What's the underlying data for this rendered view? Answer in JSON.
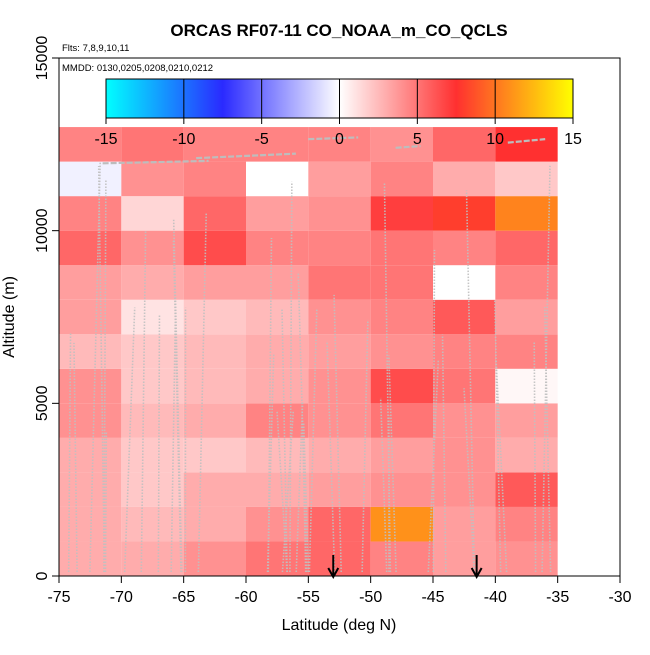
{
  "chart_data": {
    "type": "heatmap",
    "title": "ORCAS RF07-11 CO_NOAA_m_CO_QCLS",
    "annotations": {
      "flights": "Flts: 7,8,9,10,11",
      "dates": "MMDD: 0130,0205,0208,0210,0212"
    },
    "xlabel": "Latitude (deg N)",
    "ylabel": "Altitude (m)",
    "xlim": [
      -75,
      -30
    ],
    "ylim": [
      0,
      15000
    ],
    "xticks": [
      -75,
      -70,
      -65,
      -60,
      -55,
      -50,
      -45,
      -40,
      -35,
      -30
    ],
    "xtick_labels": [
      "-75",
      "-70",
      "-65",
      "-60",
      "-55",
      "-50",
      "-45",
      "-40",
      "-35",
      "-30"
    ],
    "yticks": [
      0,
      5000,
      10000,
      15000
    ],
    "ytick_labels": [
      "0",
      "5000",
      "10000",
      "15000"
    ],
    "colorbar": {
      "range": [
        -15,
        15
      ],
      "ticks": [
        -15,
        -10,
        -5,
        0,
        5,
        10,
        15
      ],
      "tick_labels": [
        "-15",
        "-10",
        "-5",
        "0",
        "5",
        "10",
        "15"
      ],
      "color_stops": [
        "#00ffff",
        "#2a2aff",
        "#ffffff",
        "#ff3030",
        "#ffff00"
      ]
    },
    "lat_bins": [
      -75,
      -70,
      -65,
      -60,
      -55,
      -50,
      -45,
      -40,
      -35
    ],
    "alt_bins": [
      0,
      1000,
      2000,
      3000,
      4000,
      5000,
      6000,
      7000,
      8000,
      9000,
      10000,
      11000,
      12000
    ],
    "values_by_alt_row_bottom_to_top": [
      [
        3.0,
        3.0,
        4.0,
        5.0,
        5.5,
        4.5,
        3.5,
        4.0
      ],
      [
        3.0,
        2.5,
        3.0,
        4.0,
        5.5,
        11.0,
        3.5,
        4.5
      ],
      [
        3.0,
        2.0,
        3.0,
        3.0,
        3.5,
        4.0,
        4.0,
        6.0
      ],
      [
        3.0,
        2.0,
        2.0,
        2.5,
        3.0,
        3.5,
        4.0,
        3.0
      ],
      [
        4.0,
        2.5,
        3.0,
        4.5,
        4.0,
        5.0,
        4.0,
        3.5
      ],
      [
        4.0,
        2.0,
        2.5,
        3.0,
        4.0,
        6.5,
        5.0,
        0.3
      ],
      [
        2.5,
        2.0,
        2.5,
        3.0,
        3.5,
        4.0,
        4.5,
        4.5
      ],
      [
        3.5,
        1.0,
        2.0,
        2.5,
        4.0,
        4.5,
        6.0,
        3.5
      ],
      [
        3.5,
        3.0,
        3.5,
        3.5,
        5.0,
        5.0,
        0.0,
        4.5
      ],
      [
        5.5,
        4.0,
        6.5,
        4.5,
        4.5,
        5.0,
        4.5,
        5.5
      ],
      [
        4.5,
        1.5,
        5.5,
        3.5,
        4.0,
        7.0,
        8.0,
        10.5
      ],
      [
        -0.5,
        4.0,
        4.5,
        0.0,
        3.5,
        4.5,
        3.0,
        2.0
      ],
      [
        4.5,
        5.0,
        4.5,
        4.5,
        4.5,
        4.0,
        5.5,
        7.5
      ]
    ],
    "arrows_latitude": [
      -53,
      -41.5
    ]
  }
}
